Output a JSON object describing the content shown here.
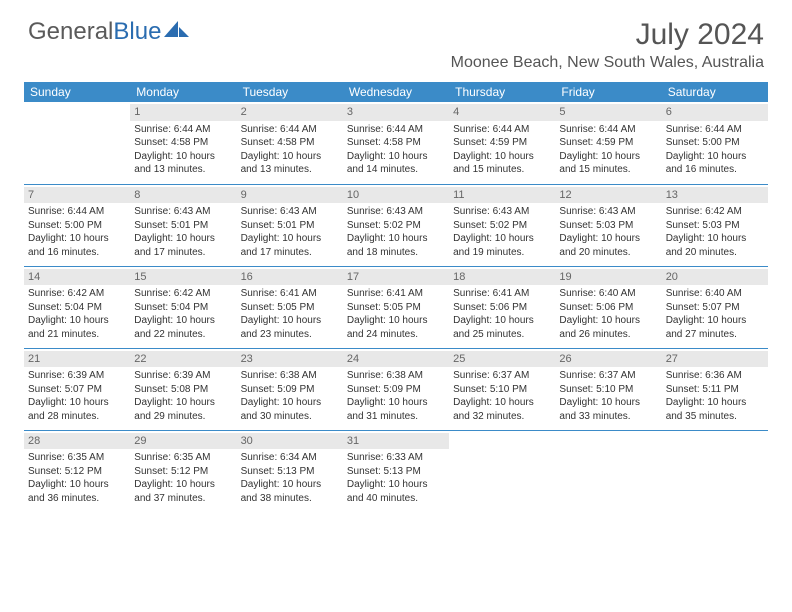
{
  "brand": {
    "part1": "General",
    "part2": "Blue"
  },
  "title": "July 2024",
  "location": "Moonee Beach, New South Wales, Australia",
  "colors": {
    "header_bg": "#3b8bc8",
    "header_text": "#ffffff",
    "daynum_bg": "#e8e8e8",
    "rule": "#3b8bc8",
    "logo_gray": "#5a5a5a",
    "logo_blue": "#2a6cb0"
  },
  "weekdays": [
    "Sunday",
    "Monday",
    "Tuesday",
    "Wednesday",
    "Thursday",
    "Friday",
    "Saturday"
  ],
  "start_weekday": 1,
  "days": [
    {
      "n": 1,
      "sunrise": "6:44 AM",
      "sunset": "4:58 PM",
      "dl1": "Daylight: 10 hours",
      "dl2": "and 13 minutes."
    },
    {
      "n": 2,
      "sunrise": "6:44 AM",
      "sunset": "4:58 PM",
      "dl1": "Daylight: 10 hours",
      "dl2": "and 13 minutes."
    },
    {
      "n": 3,
      "sunrise": "6:44 AM",
      "sunset": "4:58 PM",
      "dl1": "Daylight: 10 hours",
      "dl2": "and 14 minutes."
    },
    {
      "n": 4,
      "sunrise": "6:44 AM",
      "sunset": "4:59 PM",
      "dl1": "Daylight: 10 hours",
      "dl2": "and 15 minutes."
    },
    {
      "n": 5,
      "sunrise": "6:44 AM",
      "sunset": "4:59 PM",
      "dl1": "Daylight: 10 hours",
      "dl2": "and 15 minutes."
    },
    {
      "n": 6,
      "sunrise": "6:44 AM",
      "sunset": "5:00 PM",
      "dl1": "Daylight: 10 hours",
      "dl2": "and 16 minutes."
    },
    {
      "n": 7,
      "sunrise": "6:44 AM",
      "sunset": "5:00 PM",
      "dl1": "Daylight: 10 hours",
      "dl2": "and 16 minutes."
    },
    {
      "n": 8,
      "sunrise": "6:43 AM",
      "sunset": "5:01 PM",
      "dl1": "Daylight: 10 hours",
      "dl2": "and 17 minutes."
    },
    {
      "n": 9,
      "sunrise": "6:43 AM",
      "sunset": "5:01 PM",
      "dl1": "Daylight: 10 hours",
      "dl2": "and 17 minutes."
    },
    {
      "n": 10,
      "sunrise": "6:43 AM",
      "sunset": "5:02 PM",
      "dl1": "Daylight: 10 hours",
      "dl2": "and 18 minutes."
    },
    {
      "n": 11,
      "sunrise": "6:43 AM",
      "sunset": "5:02 PM",
      "dl1": "Daylight: 10 hours",
      "dl2": "and 19 minutes."
    },
    {
      "n": 12,
      "sunrise": "6:43 AM",
      "sunset": "5:03 PM",
      "dl1": "Daylight: 10 hours",
      "dl2": "and 20 minutes."
    },
    {
      "n": 13,
      "sunrise": "6:42 AM",
      "sunset": "5:03 PM",
      "dl1": "Daylight: 10 hours",
      "dl2": "and 20 minutes."
    },
    {
      "n": 14,
      "sunrise": "6:42 AM",
      "sunset": "5:04 PM",
      "dl1": "Daylight: 10 hours",
      "dl2": "and 21 minutes."
    },
    {
      "n": 15,
      "sunrise": "6:42 AM",
      "sunset": "5:04 PM",
      "dl1": "Daylight: 10 hours",
      "dl2": "and 22 minutes."
    },
    {
      "n": 16,
      "sunrise": "6:41 AM",
      "sunset": "5:05 PM",
      "dl1": "Daylight: 10 hours",
      "dl2": "and 23 minutes."
    },
    {
      "n": 17,
      "sunrise": "6:41 AM",
      "sunset": "5:05 PM",
      "dl1": "Daylight: 10 hours",
      "dl2": "and 24 minutes."
    },
    {
      "n": 18,
      "sunrise": "6:41 AM",
      "sunset": "5:06 PM",
      "dl1": "Daylight: 10 hours",
      "dl2": "and 25 minutes."
    },
    {
      "n": 19,
      "sunrise": "6:40 AM",
      "sunset": "5:06 PM",
      "dl1": "Daylight: 10 hours",
      "dl2": "and 26 minutes."
    },
    {
      "n": 20,
      "sunrise": "6:40 AM",
      "sunset": "5:07 PM",
      "dl1": "Daylight: 10 hours",
      "dl2": "and 27 minutes."
    },
    {
      "n": 21,
      "sunrise": "6:39 AM",
      "sunset": "5:07 PM",
      "dl1": "Daylight: 10 hours",
      "dl2": "and 28 minutes."
    },
    {
      "n": 22,
      "sunrise": "6:39 AM",
      "sunset": "5:08 PM",
      "dl1": "Daylight: 10 hours",
      "dl2": "and 29 minutes."
    },
    {
      "n": 23,
      "sunrise": "6:38 AM",
      "sunset": "5:09 PM",
      "dl1": "Daylight: 10 hours",
      "dl2": "and 30 minutes."
    },
    {
      "n": 24,
      "sunrise": "6:38 AM",
      "sunset": "5:09 PM",
      "dl1": "Daylight: 10 hours",
      "dl2": "and 31 minutes."
    },
    {
      "n": 25,
      "sunrise": "6:37 AM",
      "sunset": "5:10 PM",
      "dl1": "Daylight: 10 hours",
      "dl2": "and 32 minutes."
    },
    {
      "n": 26,
      "sunrise": "6:37 AM",
      "sunset": "5:10 PM",
      "dl1": "Daylight: 10 hours",
      "dl2": "and 33 minutes."
    },
    {
      "n": 27,
      "sunrise": "6:36 AM",
      "sunset": "5:11 PM",
      "dl1": "Daylight: 10 hours",
      "dl2": "and 35 minutes."
    },
    {
      "n": 28,
      "sunrise": "6:35 AM",
      "sunset": "5:12 PM",
      "dl1": "Daylight: 10 hours",
      "dl2": "and 36 minutes."
    },
    {
      "n": 29,
      "sunrise": "6:35 AM",
      "sunset": "5:12 PM",
      "dl1": "Daylight: 10 hours",
      "dl2": "and 37 minutes."
    },
    {
      "n": 30,
      "sunrise": "6:34 AM",
      "sunset": "5:13 PM",
      "dl1": "Daylight: 10 hours",
      "dl2": "and 38 minutes."
    },
    {
      "n": 31,
      "sunrise": "6:33 AM",
      "sunset": "5:13 PM",
      "dl1": "Daylight: 10 hours",
      "dl2": "and 40 minutes."
    }
  ]
}
